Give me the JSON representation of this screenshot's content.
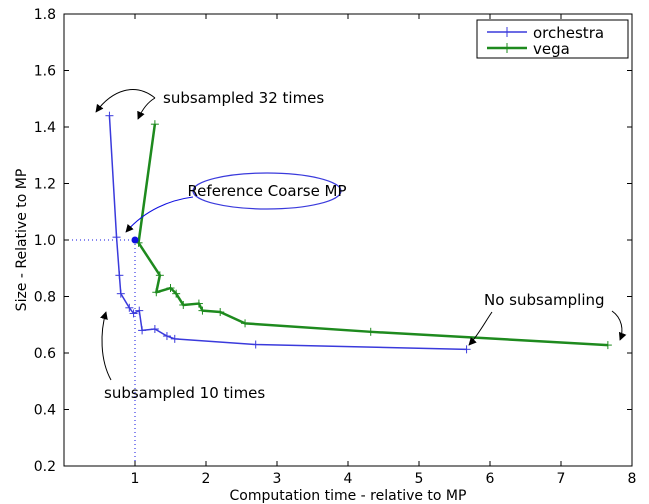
{
  "chart_data": {
    "type": "line",
    "xlabel": "Computation time - relative to MP",
    "ylabel": "Size - Relative to MP",
    "xlim": [
      0,
      8
    ],
    "ylim": [
      0.2,
      1.8
    ],
    "x_ticks": [
      1,
      2,
      3,
      4,
      5,
      6,
      7,
      8
    ],
    "y_ticks": [
      0.2,
      0.4,
      0.6,
      0.8,
      1.0,
      1.2,
      1.4,
      1.6,
      1.8
    ],
    "x_tick_labels": [
      "1",
      "2",
      "3",
      "4",
      "5",
      "6",
      "7",
      "8"
    ],
    "y_tick_labels": [
      "0.2",
      "0.4",
      "0.6",
      "0.8",
      "1.0",
      "1.2",
      "1.4",
      "1.6",
      "1.8"
    ],
    "grid": false,
    "legend_position": "top-right",
    "series": [
      {
        "name": "orchestra",
        "color": "#3a3adc",
        "points": [
          [
            0.64,
            1.44
          ],
          [
            0.74,
            1.01
          ],
          [
            0.78,
            0.875
          ],
          [
            0.8,
            0.81
          ],
          [
            0.92,
            0.76
          ],
          [
            0.98,
            0.74
          ],
          [
            1.06,
            0.75
          ],
          [
            1.1,
            0.68
          ],
          [
            1.28,
            0.685
          ],
          [
            1.45,
            0.66
          ],
          [
            1.56,
            0.65
          ],
          [
            2.7,
            0.63
          ],
          [
            5.67,
            0.613
          ]
        ]
      },
      {
        "name": "vega",
        "color": "#1e8a1e",
        "points": [
          [
            1.28,
            1.41
          ],
          [
            1.05,
            0.99
          ],
          [
            1.35,
            0.875
          ],
          [
            1.3,
            0.815
          ],
          [
            1.5,
            0.83
          ],
          [
            1.58,
            0.81
          ],
          [
            1.68,
            0.77
          ],
          [
            1.9,
            0.775
          ],
          [
            1.95,
            0.75
          ],
          [
            2.2,
            0.745
          ],
          [
            2.55,
            0.705
          ],
          [
            4.32,
            0.675
          ],
          [
            7.66,
            0.628
          ]
        ]
      }
    ],
    "reference_point": {
      "x": 1.0,
      "y": 1.0,
      "color": "#1010e0"
    },
    "annotations": {
      "subsampled_32": "subsampled 32 times",
      "reference": "Reference Coarse MP",
      "no_subsampling": "No subsampling",
      "subsampled_10": "subsampled 10 times"
    }
  }
}
